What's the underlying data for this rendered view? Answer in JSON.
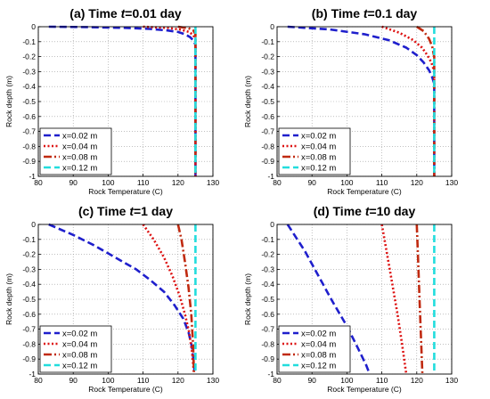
{
  "chart_data": [
    {
      "type": "line",
      "title_prefix": "(a) Time ",
      "title_var": "t",
      "title_suffix": "=0.01 day",
      "xlabel": "Rock Temperature (C)",
      "ylabel": "Rock depth (m)",
      "xlim": [
        80,
        130
      ],
      "ylim": [
        -1,
        0
      ],
      "xticks": [
        "80",
        "90",
        "100",
        "110",
        "120",
        "130"
      ],
      "yticks": [
        "0",
        "-0.1",
        "-0.2",
        "-0.3",
        "-0.4",
        "-0.5",
        "-0.6",
        "-0.7",
        "-0.8",
        "-0.9",
        "-1"
      ],
      "grid": true,
      "legend_position": "bottom-left",
      "series": [
        {
          "name": "x=0.02 m",
          "color": "#1f1fcc",
          "style": "dashed",
          "points": [
            [
              83,
              0
            ],
            [
              95,
              -0.003
            ],
            [
              105,
              -0.008
            ],
            [
              112,
              -0.015
            ],
            [
              117,
              -0.025
            ],
            [
              120,
              -0.035
            ],
            [
              122,
              -0.05
            ],
            [
              123.5,
              -0.07
            ],
            [
              124.3,
              -0.09
            ],
            [
              125,
              -0.12
            ],
            [
              125,
              -1
            ]
          ]
        },
        {
          "name": "x=0.04 m",
          "color": "#dd1111",
          "style": "dotted",
          "points": [
            [
              110,
              0
            ],
            [
              117,
              -0.008
            ],
            [
              121,
              -0.02
            ],
            [
              123.2,
              -0.035
            ],
            [
              124.3,
              -0.055
            ],
            [
              125,
              -0.08
            ],
            [
              125,
              -1
            ]
          ]
        },
        {
          "name": "x=0.08 m",
          "color": "#c02a10",
          "style": "dashdot",
          "points": [
            [
              120,
              0
            ],
            [
              123,
              -0.01
            ],
            [
              124.4,
              -0.025
            ],
            [
              125,
              -0.05
            ],
            [
              125,
              -1
            ]
          ]
        },
        {
          "name": "x=0.12 m",
          "color": "#22dddd",
          "style": "dashed",
          "points": [
            [
              125,
              0
            ],
            [
              125,
              -1
            ]
          ]
        }
      ]
    },
    {
      "type": "line",
      "title_prefix": "(b) Time ",
      "title_var": "t",
      "title_suffix": "=0.1 day",
      "xlabel": "Rock Temperature (C)",
      "ylabel": "Rock depth (m)",
      "xlim": [
        80,
        130
      ],
      "ylim": [
        -1,
        0
      ],
      "xticks": [
        "80",
        "90",
        "100",
        "110",
        "120",
        "130"
      ],
      "yticks": [
        "0",
        "-0.1",
        "-0.2",
        "-0.3",
        "-0.4",
        "-0.5",
        "-0.6",
        "-0.7",
        "-0.8",
        "-0.9",
        "-1"
      ],
      "grid": true,
      "legend_position": "bottom-left",
      "series": [
        {
          "name": "x=0.02 m",
          "color": "#1f1fcc",
          "style": "dashed",
          "points": [
            [
              83,
              0
            ],
            [
              95,
              -0.018
            ],
            [
              105,
              -0.05
            ],
            [
              112,
              -0.09
            ],
            [
              117,
              -0.14
            ],
            [
              120,
              -0.19
            ],
            [
              122,
              -0.24
            ],
            [
              123.5,
              -0.29
            ],
            [
              124.3,
              -0.33
            ],
            [
              125,
              -0.38
            ],
            [
              125,
              -1
            ]
          ]
        },
        {
          "name": "x=0.04 m",
          "color": "#dd1111",
          "style": "dotted",
          "points": [
            [
              110,
              0
            ],
            [
              115,
              -0.04
            ],
            [
              119,
              -0.09
            ],
            [
              121.5,
              -0.14
            ],
            [
              123,
              -0.19
            ],
            [
              124.2,
              -0.24
            ],
            [
              125,
              -0.3
            ],
            [
              125,
              -1
            ]
          ]
        },
        {
          "name": "x=0.08 m",
          "color": "#c02a10",
          "style": "dashdot",
          "points": [
            [
              120,
              0
            ],
            [
              122,
              -0.03
            ],
            [
              123.5,
              -0.08
            ],
            [
              124.4,
              -0.13
            ],
            [
              125,
              -0.2
            ],
            [
              125,
              -1
            ]
          ]
        },
        {
          "name": "x=0.12 m",
          "color": "#22dddd",
          "style": "dashed",
          "points": [
            [
              125,
              0
            ],
            [
              125,
              -1
            ]
          ]
        }
      ]
    },
    {
      "type": "line",
      "title_prefix": "(c) Time ",
      "title_var": "t",
      "title_suffix": "=1 day",
      "xlabel": "Rock Temperature (C)",
      "ylabel": "Rock depth (m)",
      "xlim": [
        80,
        130
      ],
      "ylim": [
        -1,
        0
      ],
      "xticks": [
        "80",
        "90",
        "100",
        "110",
        "120",
        "130"
      ],
      "yticks": [
        "0",
        "-0.1",
        "-0.2",
        "-0.3",
        "-0.4",
        "-0.5",
        "-0.6",
        "-0.7",
        "-0.8",
        "-0.9",
        "-1"
      ],
      "grid": true,
      "legend_position": "bottom-left",
      "series": [
        {
          "name": "x=0.02 m",
          "color": "#1f1fcc",
          "style": "dashed",
          "points": [
            [
              83,
              0
            ],
            [
              90,
              -0.07
            ],
            [
              96,
              -0.14
            ],
            [
              102,
              -0.22
            ],
            [
              108,
              -0.3
            ],
            [
              112,
              -0.37
            ],
            [
              116,
              -0.45
            ],
            [
              119,
              -0.54
            ],
            [
              121.5,
              -0.63
            ],
            [
              123,
              -0.72
            ],
            [
              124,
              -0.82
            ],
            [
              124.5,
              -0.92
            ],
            [
              124.8,
              -1
            ]
          ]
        },
        {
          "name": "x=0.04 m",
          "color": "#dd1111",
          "style": "dotted",
          "points": [
            [
              110,
              0
            ],
            [
              113,
              -0.1
            ],
            [
              116,
              -0.22
            ],
            [
              118.5,
              -0.35
            ],
            [
              120.5,
              -0.48
            ],
            [
              122,
              -0.6
            ],
            [
              123.2,
              -0.72
            ],
            [
              124,
              -0.85
            ],
            [
              124.6,
              -1
            ]
          ]
        },
        {
          "name": "x=0.08 m",
          "color": "#c02a10",
          "style": "dashdot",
          "points": [
            [
              120,
              0
            ],
            [
              121,
              -0.1
            ],
            [
              122,
              -0.25
            ],
            [
              123,
              -0.42
            ],
            [
              123.8,
              -0.6
            ],
            [
              124.3,
              -0.8
            ],
            [
              124.6,
              -1
            ]
          ]
        },
        {
          "name": "x=0.12 m",
          "color": "#22dddd",
          "style": "dashed",
          "points": [
            [
              125,
              0
            ],
            [
              125,
              -1
            ]
          ]
        }
      ]
    },
    {
      "type": "line",
      "title_prefix": "(d) Time ",
      "title_var": "t",
      "title_suffix": "=10 day",
      "xlabel": "Rock Temperature (C)",
      "ylabel": "Rock depth (m)",
      "xlim": [
        80,
        130
      ],
      "ylim": [
        -1,
        0
      ],
      "xticks": [
        "80",
        "90",
        "100",
        "110",
        "120",
        "130"
      ],
      "yticks": [
        "0",
        "-0.1",
        "-0.2",
        "-0.3",
        "-0.4",
        "-0.5",
        "-0.6",
        "-0.7",
        "-0.8",
        "-0.9",
        "-1"
      ],
      "grid": true,
      "legend_position": "bottom-left",
      "series": [
        {
          "name": "x=0.02 m",
          "color": "#1f1fcc",
          "style": "dashed",
          "points": [
            [
              83,
              0
            ],
            [
              88,
              -0.18
            ],
            [
              92,
              -0.35
            ],
            [
              96,
              -0.52
            ],
            [
              100,
              -0.68
            ],
            [
              103,
              -0.82
            ],
            [
              105.5,
              -0.94
            ],
            [
              106.5,
              -1
            ]
          ]
        },
        {
          "name": "x=0.04 m",
          "color": "#dd1111",
          "style": "dotted",
          "points": [
            [
              110,
              0
            ],
            [
              111.5,
              -0.2
            ],
            [
              113,
              -0.4
            ],
            [
              114.5,
              -0.6
            ],
            [
              115.8,
              -0.8
            ],
            [
              117,
              -1
            ]
          ]
        },
        {
          "name": "x=0.08 m",
          "color": "#c02a10",
          "style": "dashdot",
          "points": [
            [
              120,
              0
            ],
            [
              120.4,
              -0.25
            ],
            [
              120.8,
              -0.5
            ],
            [
              121.2,
              -0.75
            ],
            [
              121.6,
              -1
            ]
          ]
        },
        {
          "name": "x=0.12 m",
          "color": "#22dddd",
          "style": "dashed",
          "points": [
            [
              125,
              0
            ],
            [
              125,
              -1
            ]
          ]
        }
      ]
    }
  ]
}
